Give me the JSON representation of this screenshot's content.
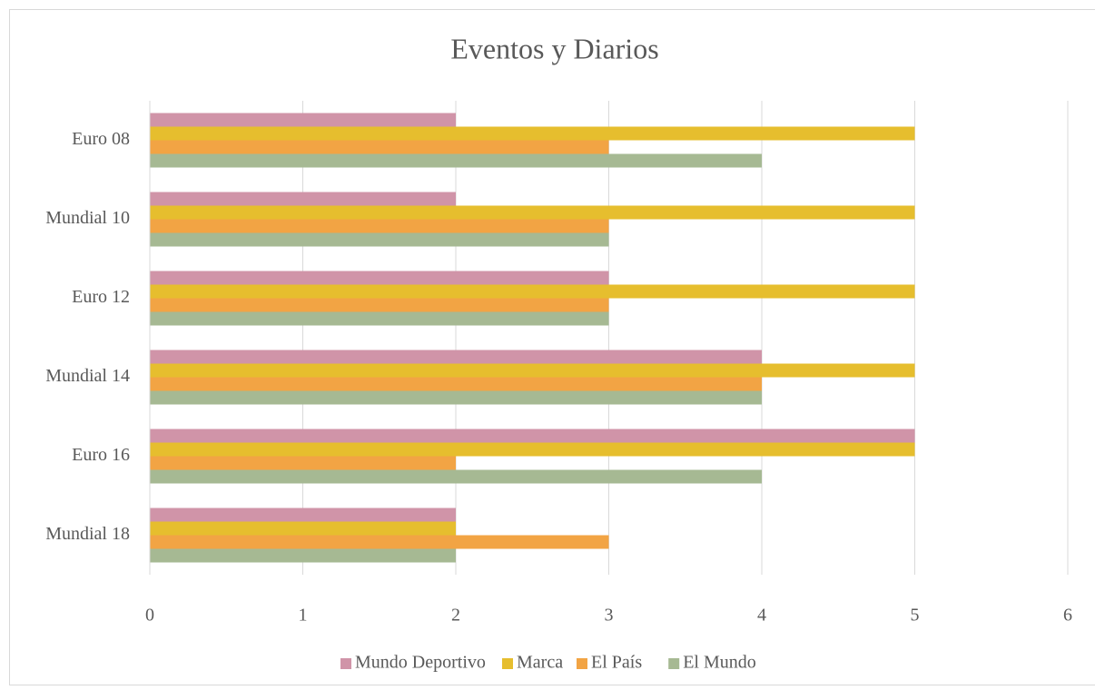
{
  "chart_data": {
    "type": "hbar",
    "title": "Eventos y Diarios",
    "categories": [
      "Euro 08",
      "Mundial 10",
      "Euro 12",
      "Mundial 14",
      "Euro 16",
      "Mundial 18"
    ],
    "series": [
      {
        "name": "Mundo Deportivo",
        "color": "#d094a8",
        "values": [
          2,
          2,
          3,
          4,
          5,
          2
        ]
      },
      {
        "name": "Marca",
        "color": "#e6be2e",
        "values": [
          5,
          5,
          5,
          5,
          5,
          2
        ]
      },
      {
        "name": "El País",
        "color": "#f2a444",
        "values": [
          3,
          3,
          3,
          4,
          2,
          3
        ]
      },
      {
        "name": "El Mundo",
        "color": "#a6b993",
        "values": [
          4,
          3,
          3,
          4,
          4,
          2
        ]
      }
    ],
    "xlim": [
      0,
      6
    ],
    "xticks": [
      0,
      1,
      2,
      3,
      4,
      5,
      6
    ],
    "grid": true,
    "legend": "bottom"
  }
}
